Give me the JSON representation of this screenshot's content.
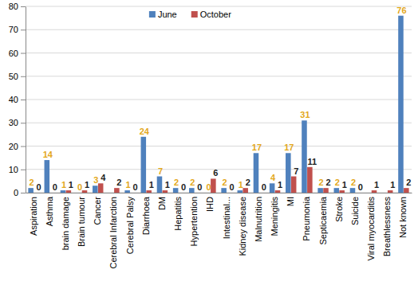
{
  "chart_data": {
    "type": "bar",
    "categories": [
      "Aspiration",
      "Asthma",
      "brain damage",
      "Brain tumour",
      "Cancer",
      "Cerebral Infarction",
      "Cerebral Palsy",
      "Diarrhoea",
      "DM",
      "Hepatitis",
      "Hypertention",
      "IHD",
      "Intestinal...",
      "Kidney disease",
      "Malnutrition",
      "Meningitis",
      "MI",
      "Pneumonia",
      "Septicaemia",
      "Stroke",
      "Suicide",
      "Viral myocarditis",
      "Breathlessness",
      "Not known"
    ],
    "series": [
      {
        "name": "June",
        "color": "#4f81bd",
        "values": [
          2,
          14,
          1,
          0,
          3,
          null,
          1,
          24,
          7,
          2,
          2,
          0,
          2,
          1,
          17,
          4,
          17,
          31,
          2,
          2,
          2,
          null,
          null,
          76
        ]
      },
      {
        "name": "October",
        "color": "#c0504d",
        "values": [
          0,
          0,
          1,
          1,
          4,
          2,
          0,
          1,
          1,
          0,
          0,
          6,
          0,
          2,
          0,
          1,
          7,
          11,
          2,
          1,
          0,
          1,
          1,
          2
        ]
      }
    ],
    "ylim": [
      0,
      80
    ],
    "yticks": [
      0,
      10,
      20,
      30,
      40,
      50,
      60,
      70,
      80
    ],
    "grid": true,
    "legend": "top",
    "data_labels": true
  }
}
